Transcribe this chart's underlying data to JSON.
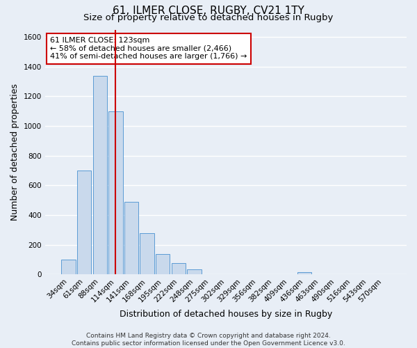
{
  "title": "61, ILMER CLOSE, RUGBY, CV21 1TY",
  "subtitle": "Size of property relative to detached houses in Rugby",
  "xlabel": "Distribution of detached houses by size in Rugby",
  "ylabel": "Number of detached properties",
  "bar_labels": [
    "34sqm",
    "61sqm",
    "88sqm",
    "114sqm",
    "141sqm",
    "168sqm",
    "195sqm",
    "222sqm",
    "248sqm",
    "275sqm",
    "302sqm",
    "329sqm",
    "356sqm",
    "382sqm",
    "409sqm",
    "436sqm",
    "463sqm",
    "490sqm",
    "516sqm",
    "543sqm",
    "570sqm"
  ],
  "bar_values": [
    100,
    700,
    1340,
    1100,
    490,
    280,
    140,
    75,
    35,
    0,
    0,
    0,
    0,
    0,
    0,
    15,
    0,
    0,
    0,
    0,
    0
  ],
  "bar_color": "#c9d9ec",
  "bar_edge_color": "#5b9bd5",
  "vline_x": 3.0,
  "vline_color": "#cc0000",
  "annotation_text": "61 ILMER CLOSE: 123sqm\n← 58% of detached houses are smaller (2,466)\n41% of semi-detached houses are larger (1,766) →",
  "annotation_box_color": "white",
  "annotation_box_edge": "#cc0000",
  "ylim": [
    0,
    1650
  ],
  "yticks": [
    0,
    200,
    400,
    600,
    800,
    1000,
    1200,
    1400,
    1600
  ],
  "footer": "Contains HM Land Registry data © Crown copyright and database right 2024.\nContains public sector information licensed under the Open Government Licence v3.0.",
  "bg_color": "#e8eef6",
  "plot_bg_color": "#e8eef6",
  "grid_color": "white",
  "title_fontsize": 11,
  "subtitle_fontsize": 9.5,
  "axis_label_fontsize": 9,
  "tick_fontsize": 7.5,
  "footer_fontsize": 6.5
}
